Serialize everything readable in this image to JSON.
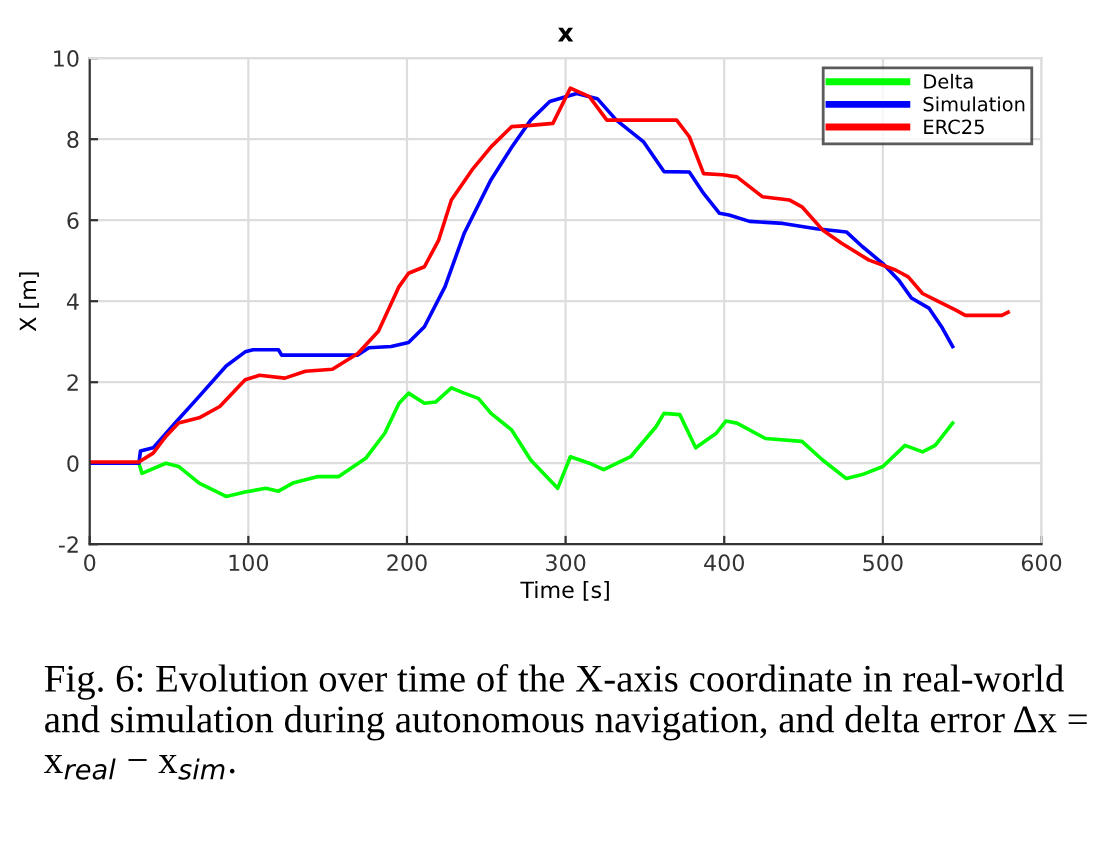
{
  "chart_data": {
    "type": "line",
    "title": "x",
    "xlabel": "Time [s]",
    "ylabel": "X [m]",
    "xlim": [
      0,
      600
    ],
    "xticks": [
      0,
      100,
      200,
      300,
      400,
      500,
      600
    ],
    "ylim": [
      -2,
      10
    ],
    "yticks": [
      -2,
      0,
      2,
      4,
      6,
      8,
      10
    ],
    "grid": true,
    "legend": "top right",
    "marker": "none",
    "line_style": "solid",
    "annotations": [
      "Fig. 6: Evolution over time of the X-axis coordinate in real-world and simulation during autonomous navigation, and delta error Δx = x$_{real}$ − x$_{sim}$."
    ],
    "series": [
      {
        "name": "Delta",
        "color": "#00ff00",
        "x": [
          0,
          31,
          33,
          48,
          56,
          69,
          86,
          98,
          111,
          119,
          128,
          144,
          157,
          174,
          186,
          195,
          201,
          211,
          218,
          228,
          236,
          245,
          253,
          266,
          278,
          295,
          303,
          315,
          324,
          341,
          357,
          362,
          372,
          382,
          395,
          401,
          408,
          426,
          449,
          462,
          477,
          487,
          500,
          514,
          525,
          533,
          544
        ],
        "values": [
          0,
          0,
          -0.25,
          0,
          -0.08,
          -0.49,
          -0.82,
          -0.71,
          -0.62,
          -0.69,
          -0.49,
          -0.33,
          -0.33,
          0.12,
          0.74,
          1.48,
          1.73,
          1.48,
          1.51,
          1.86,
          1.73,
          1.6,
          1.23,
          0.82,
          0.08,
          -0.62,
          0.16,
          0,
          -0.16,
          0.16,
          0.9,
          1.23,
          1.2,
          0.38,
          0.74,
          1.04,
          0.99,
          0.61,
          0.54,
          0.08,
          -0.38,
          -0.28,
          -0.08,
          0.44,
          0.28,
          0.44,
          0.99
        ]
      },
      {
        "name": "Simulation",
        "color": "#0000ff",
        "x": [
          0,
          31,
          32,
          40,
          54,
          69,
          86,
          98,
          103,
          119,
          121,
          169,
          176,
          190,
          201,
          211,
          224,
          236,
          253,
          266,
          278,
          290,
          307,
          320,
          332,
          349,
          362,
          378,
          387,
          397,
          403,
          416,
          437,
          458,
          477,
          487,
          500,
          510,
          518,
          529,
          537,
          544
        ],
        "values": [
          0,
          0,
          0.3,
          0.38,
          1.0,
          1.65,
          2.4,
          2.75,
          2.8,
          2.8,
          2.67,
          2.67,
          2.85,
          2.88,
          2.98,
          3.37,
          4.36,
          5.67,
          7.0,
          7.8,
          8.47,
          8.93,
          9.13,
          9.0,
          8.47,
          7.94,
          7.2,
          7.19,
          6.66,
          6.17,
          6.13,
          5.97,
          5.92,
          5.79,
          5.71,
          5.35,
          4.93,
          4.52,
          4.08,
          3.83,
          3.37,
          2.88
        ]
      },
      {
        "name": "ERC25",
        "color": "#ff0000",
        "x": [
          0,
          31,
          40,
          48,
          56,
          69,
          82,
          98,
          107,
          123,
          136,
          153,
          169,
          182,
          195,
          201,
          211,
          220,
          228,
          241,
          253,
          266,
          278,
          292,
          303,
          315,
          326,
          341,
          370,
          378,
          387,
          399,
          408,
          424,
          441,
          449,
          462,
          474,
          491,
          508,
          516,
          525,
          533,
          546,
          552,
          575,
          579
        ],
        "values": [
          0.03,
          0.03,
          0.25,
          0.66,
          0.99,
          1.12,
          1.4,
          2.06,
          2.17,
          2.1,
          2.27,
          2.32,
          2.71,
          3.26,
          4.36,
          4.69,
          4.85,
          5.51,
          6.5,
          7.24,
          7.81,
          8.31,
          8.34,
          8.39,
          9.26,
          9.05,
          8.47,
          8.47,
          8.47,
          8.06,
          7.15,
          7.12,
          7.07,
          6.58,
          6.5,
          6.33,
          5.76,
          5.43,
          5.02,
          4.77,
          4.6,
          4.19,
          4.03,
          3.78,
          3.65,
          3.65,
          3.73
        ]
      }
    ]
  }
}
